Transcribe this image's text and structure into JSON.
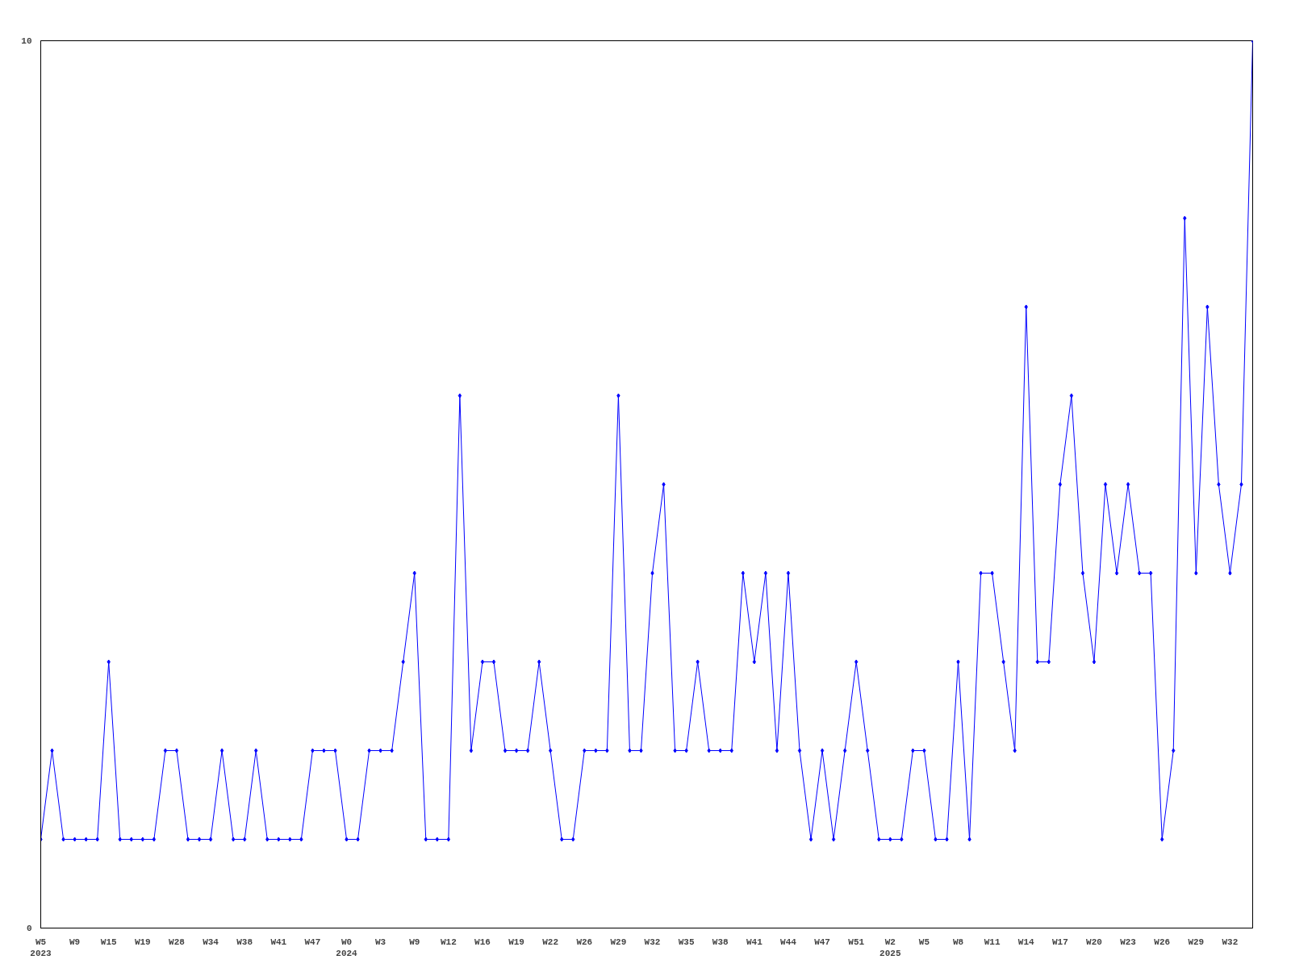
{
  "chart_data": {
    "type": "line",
    "categories": [
      "W5\n2023",
      null,
      null,
      "W9",
      null,
      null,
      "W15",
      null,
      null,
      "W19",
      null,
      null,
      "W28",
      null,
      null,
      "W34",
      null,
      null,
      "W38",
      null,
      null,
      "W41",
      null,
      null,
      "W47",
      null,
      null,
      "W0\n2024",
      null,
      null,
      "W3",
      null,
      null,
      "W9",
      null,
      null,
      "W12",
      null,
      null,
      "W16",
      null,
      null,
      "W19",
      null,
      null,
      "W22",
      null,
      null,
      "W26",
      null,
      null,
      "W29",
      null,
      null,
      "W32",
      null,
      null,
      "W35",
      null,
      null,
      "W38",
      null,
      null,
      "W41",
      null,
      null,
      "W44",
      null,
      null,
      "W47",
      null,
      null,
      "W51",
      null,
      null,
      "W2\n2025",
      null,
      null,
      "W5",
      null,
      null,
      "W8",
      null,
      null,
      "W11",
      null,
      null,
      "W14",
      null,
      null,
      "W17",
      null,
      null,
      "W20",
      null,
      null,
      "W23",
      null,
      null,
      "W26",
      null,
      null,
      "W29",
      null,
      null,
      "W32",
      null,
      null
    ],
    "series": [
      {
        "color": "#0000ff",
        "values": [
          1,
          2,
          1,
          1,
          1,
          1,
          3,
          1,
          1,
          1,
          1,
          2,
          2,
          1,
          1,
          1,
          2,
          1,
          1,
          2,
          1,
          1,
          1,
          1,
          2,
          2,
          2,
          1,
          1,
          2,
          2,
          2,
          3,
          4,
          1,
          1,
          1,
          6,
          2,
          3,
          3,
          2,
          2,
          2,
          3,
          2,
          1,
          1,
          2,
          2,
          2,
          6,
          2,
          2,
          4,
          5,
          2,
          2,
          3,
          2,
          2,
          2,
          4,
          3,
          4,
          2,
          4,
          2,
          1,
          2,
          1,
          2,
          3,
          2,
          1,
          1,
          1,
          2,
          2,
          1,
          1,
          3,
          1,
          4,
          4,
          3,
          2,
          7,
          3,
          3,
          5,
          6,
          4,
          3,
          5,
          4,
          5,
          4,
          4,
          1,
          2,
          8,
          4,
          7,
          5,
          4,
          5,
          10
        ]
      }
    ],
    "ylim": [
      0,
      10
    ],
    "yticks": [
      0,
      10
    ],
    "grid": false,
    "marker": "diamond",
    "line_style": "solid"
  }
}
